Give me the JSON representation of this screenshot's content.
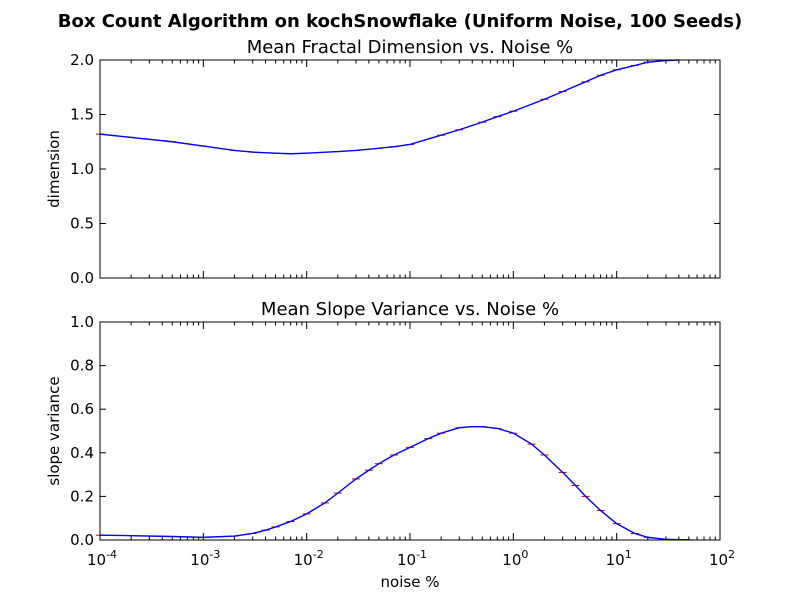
{
  "figure": {
    "title": "Box Count Algorithm on kochSnowflake (Uniform Noise, 100 Seeds)"
  },
  "colors": {
    "line": "#0000ff",
    "errorbar": "#cc0000",
    "axes": "#000000"
  },
  "chart_data": [
    {
      "type": "line",
      "title": "Mean Fractal Dimension vs. Noise %",
      "xlabel": "",
      "ylabel": "dimension",
      "x_scale": "log",
      "xlim": [
        0.0001,
        100
      ],
      "ylim": [
        0,
        2.0
      ],
      "yticks": [
        "0.0",
        "0.5",
        "1.0",
        "1.5",
        "2.0"
      ],
      "grid": false,
      "series": [
        {
          "x": [
            0.0001,
            0.0002,
            0.0005,
            0.001,
            0.002,
            0.003,
            0.005,
            0.007,
            0.01,
            0.02,
            0.03,
            0.05,
            0.07,
            0.1,
            0.2,
            0.3,
            0.5,
            0.7,
            1,
            2,
            3,
            5,
            7,
            10,
            15,
            20,
            30,
            40
          ],
          "values": [
            1.32,
            1.29,
            1.25,
            1.21,
            1.17,
            1.155,
            1.145,
            1.14,
            1.145,
            1.16,
            1.17,
            1.19,
            1.205,
            1.225,
            1.31,
            1.36,
            1.43,
            1.48,
            1.53,
            1.64,
            1.71,
            1.8,
            1.86,
            1.91,
            1.95,
            1.98,
            1.995,
            2.0
          ]
        }
      ]
    },
    {
      "type": "line",
      "title": "Mean Slope Variance vs. Noise %",
      "xlabel": "noise %",
      "ylabel": "slope variance",
      "x_scale": "log",
      "xlim": [
        0.0001,
        100
      ],
      "ylim": [
        0,
        1.0
      ],
      "yticks": [
        "0.0",
        "0.2",
        "0.4",
        "0.6",
        "0.8",
        "1.0"
      ],
      "grid": false,
      "series": [
        {
          "x": [
            0.0001,
            0.0002,
            0.0005,
            0.001,
            0.002,
            0.003,
            0.004,
            0.005,
            0.007,
            0.01,
            0.015,
            0.02,
            0.03,
            0.04,
            0.05,
            0.07,
            0.1,
            0.15,
            0.2,
            0.3,
            0.4,
            0.5,
            0.7,
            1,
            1.5,
            2,
            3,
            4,
            5,
            7,
            10,
            15,
            20,
            30,
            40,
            50
          ],
          "values": [
            0.022,
            0.02,
            0.016,
            0.012,
            0.018,
            0.03,
            0.045,
            0.06,
            0.085,
            0.12,
            0.17,
            0.215,
            0.28,
            0.32,
            0.35,
            0.39,
            0.425,
            0.465,
            0.49,
            0.515,
            0.52,
            0.52,
            0.512,
            0.49,
            0.44,
            0.39,
            0.31,
            0.25,
            0.2,
            0.135,
            0.075,
            0.03,
            0.012,
            0.003,
            0.0015,
            0.001
          ]
        }
      ]
    }
  ],
  "x_tick_labels": [
    {
      "base": "10",
      "exp": "-4"
    },
    {
      "base": "10",
      "exp": "-3"
    },
    {
      "base": "10",
      "exp": "-2"
    },
    {
      "base": "10",
      "exp": "-1"
    },
    {
      "base": "10",
      "exp": "0"
    },
    {
      "base": "10",
      "exp": "1"
    },
    {
      "base": "10",
      "exp": "2"
    }
  ]
}
